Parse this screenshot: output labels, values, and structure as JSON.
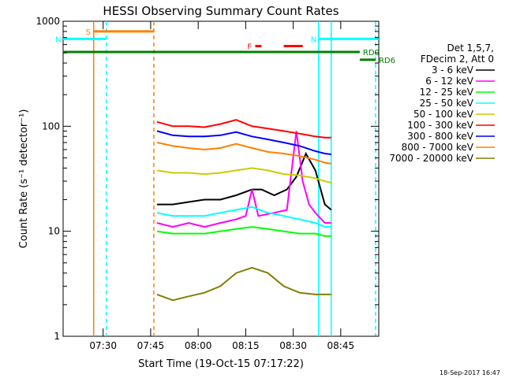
{
  "chart_data": {
    "type": "line",
    "title": "HESSI Observing Summary Count Rates",
    "xlabel": "Start Time (19-Oct-15 07:17:22)",
    "ylabel": "Count Rate (s⁻¹ detector⁻¹)",
    "yscale": "log",
    "ylim": [
      1,
      1000
    ],
    "xlim": [
      "07:17:22",
      "08:57:00"
    ],
    "x_ticks": [
      "07:30",
      "07:45",
      "08:00",
      "08:15",
      "08:30",
      "08:45"
    ],
    "y_ticks": [
      "1",
      "10",
      "100",
      "1000"
    ],
    "grid": false,
    "legend_position": "right",
    "legend_header": [
      "Det 1,5,7,",
      "FDecim 2, Att 0"
    ],
    "footer_date": "18-Sep-2017 16:47",
    "series": [
      {
        "name": "3 - 6 keV",
        "color": "#000000",
        "x": [
          "07:47",
          "07:52",
          "07:57",
          "08:02",
          "08:07",
          "08:12",
          "08:17",
          "08:20",
          "08:24",
          "08:28",
          "08:31",
          "08:34",
          "08:37",
          "08:40",
          "08:42"
        ],
        "y": [
          18,
          18,
          19,
          20,
          20,
          22,
          25,
          25,
          22,
          25,
          33,
          55,
          38,
          18,
          16
        ]
      },
      {
        "name": "6 - 12 keV",
        "color": "#ff00ff",
        "x": [
          "07:47",
          "07:52",
          "07:57",
          "08:02",
          "08:07",
          "08:12",
          "08:15",
          "08:17",
          "08:19",
          "08:24",
          "08:28",
          "08:31",
          "08:33",
          "08:35",
          "08:37",
          "08:40",
          "08:42"
        ],
        "y": [
          12,
          11,
          12,
          11,
          12,
          13,
          14,
          25,
          14,
          15,
          16,
          90,
          30,
          18,
          15,
          12,
          12
        ]
      },
      {
        "name": "12 - 25 keV",
        "color": "#00ff00",
        "x": [
          "07:47",
          "07:52",
          "07:57",
          "08:02",
          "08:07",
          "08:12",
          "08:17",
          "08:22",
          "08:27",
          "08:32",
          "08:37",
          "08:40",
          "08:42"
        ],
        "y": [
          10,
          9.5,
          9.5,
          9.5,
          10,
          10.5,
          11,
          10.5,
          10,
          9.5,
          9.5,
          9,
          9
        ]
      },
      {
        "name": "25 - 50 keV",
        "color": "#00ffff",
        "x": [
          "07:47",
          "07:52",
          "07:57",
          "08:02",
          "08:07",
          "08:12",
          "08:17",
          "08:22",
          "08:27",
          "08:32",
          "08:37",
          "08:40",
          "08:42"
        ],
        "y": [
          15,
          14,
          14,
          14,
          15,
          16,
          17,
          15,
          14,
          13,
          12,
          11,
          11
        ]
      },
      {
        "name": "50 - 100 keV",
        "color": "#cccc00",
        "x": [
          "07:47",
          "07:52",
          "07:57",
          "08:02",
          "08:07",
          "08:12",
          "08:17",
          "08:22",
          "08:27",
          "08:32",
          "08:37",
          "08:40",
          "08:42"
        ],
        "y": [
          38,
          36,
          36,
          35,
          36,
          38,
          40,
          38,
          35,
          34,
          32,
          30,
          29
        ]
      },
      {
        "name": "100 - 300 keV",
        "color": "#ff0000",
        "x": [
          "07:47",
          "07:52",
          "07:57",
          "08:02",
          "08:07",
          "08:12",
          "08:17",
          "08:22",
          "08:27",
          "08:32",
          "08:37",
          "08:40",
          "08:42"
        ],
        "y": [
          110,
          100,
          100,
          98,
          105,
          115,
          100,
          95,
          90,
          85,
          80,
          78,
          78
        ]
      },
      {
        "name": "300 - 800 keV",
        "color": "#0000ff",
        "x": [
          "07:47",
          "07:52",
          "07:57",
          "08:02",
          "08:07",
          "08:12",
          "08:17",
          "08:22",
          "08:27",
          "08:32",
          "08:37",
          "08:40",
          "08:42"
        ],
        "y": [
          90,
          82,
          80,
          80,
          82,
          88,
          80,
          75,
          70,
          65,
          58,
          55,
          54
        ]
      },
      {
        "name": "800 - 7000 keV",
        "color": "#ff8000",
        "x": [
          "07:47",
          "07:52",
          "07:57",
          "08:02",
          "08:07",
          "08:12",
          "08:17",
          "08:22",
          "08:27",
          "08:32",
          "08:37",
          "08:40",
          "08:42"
        ],
        "y": [
          70,
          65,
          62,
          60,
          62,
          68,
          62,
          57,
          55,
          52,
          48,
          45,
          44
        ]
      },
      {
        "name": "7000 - 20000 keV",
        "color": "#808000",
        "x": [
          "07:47",
          "07:52",
          "07:57",
          "08:02",
          "08:07",
          "08:12",
          "08:17",
          "08:22",
          "08:27",
          "08:32",
          "08:37",
          "08:40",
          "08:42"
        ],
        "y": [
          2.5,
          2.2,
          2.4,
          2.6,
          3.0,
          4.0,
          4.5,
          4.0,
          3.0,
          2.6,
          2.5,
          2.5,
          2.5
        ]
      }
    ],
    "flag_bars": [
      {
        "label": "S",
        "color": "#ff8000",
        "x": [
          "07:27",
          "07:46"
        ],
        "y": 800
      },
      {
        "label": "N",
        "color": "#00ffff",
        "x": [
          "07:17:22",
          "07:31"
        ],
        "y": 680
      },
      {
        "label": "N",
        "color": "#00ffff",
        "x": [
          "08:38",
          "08:57"
        ],
        "y": 680
      },
      {
        "label": "F",
        "color": "#ff0000",
        "x": [
          "08:18",
          "08:20"
        ],
        "y": 580
      },
      {
        "label": "",
        "color": "#ff0000",
        "x": [
          "08:27",
          "08:33"
        ],
        "y": 580
      },
      {
        "label": "RD0",
        "color": "#008000",
        "x": [
          "07:17:22",
          "08:51"
        ],
        "y": 510
      },
      {
        "label": "RD6",
        "color": "#008000",
        "x": [
          "08:51",
          "08:56"
        ],
        "y": 430
      }
    ],
    "vertical_markers": [
      {
        "x": "07:27",
        "color": "#ff8000",
        "style": "solid"
      },
      {
        "x": "07:31",
        "color": "#00ffff",
        "style": "dashed"
      },
      {
        "x": "07:46",
        "color": "#ff8000",
        "style": "dashed"
      },
      {
        "x": "08:38",
        "color": "#00ffff",
        "style": "solid"
      },
      {
        "x": "08:42",
        "color": "#00ffff",
        "style": "solid"
      },
      {
        "x": "08:56",
        "color": "#00ffff",
        "style": "dashed"
      }
    ]
  }
}
